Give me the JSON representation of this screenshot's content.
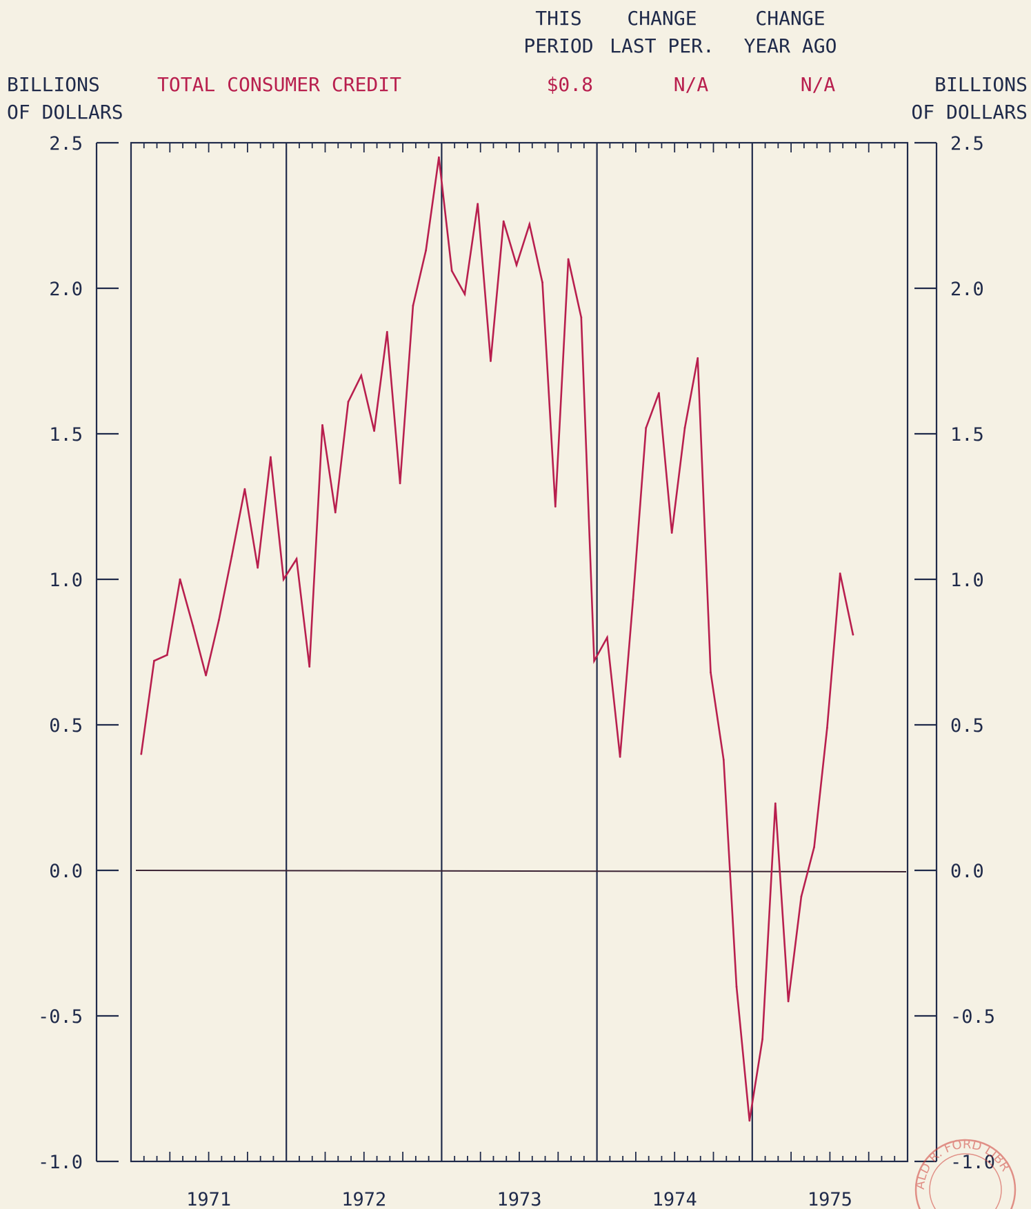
{
  "header": {
    "col1": [
      "THIS",
      "PERIOD"
    ],
    "col2": [
      "CHANGE",
      "LAST PER."
    ],
    "col3": [
      "CHANGE",
      "YEAR AGO"
    ],
    "series_title": "TOTAL CONSUMER CREDIT",
    "this_period": "$0.8",
    "change_last": "N/A",
    "change_year": "N/A",
    "left_unit": [
      "BILLIONS",
      "OF DOLLARS"
    ],
    "right_unit": [
      "BILLIONS",
      "OF DOLLARS"
    ]
  },
  "stamp": "ALD R. FORD LIBR",
  "colors": {
    "axis": "#1f2a4a",
    "series": "#b81f4e",
    "background": "#f5f1e4"
  },
  "chart_data": {
    "type": "line",
    "title": "TOTAL CONSUMER CREDIT",
    "ylabel": "BILLIONS OF DOLLARS",
    "ylim": [
      -1.0,
      2.5
    ],
    "yticks": [
      2.5,
      2.0,
      1.5,
      1.0,
      0.5,
      0.0,
      -0.5,
      -1.0
    ],
    "ytick_labels": [
      "2.5",
      "2.0",
      "1.5",
      "1.0",
      "0.5",
      "0.0",
      "-0.5",
      "-1.0"
    ],
    "xlabels": [
      "1971",
      "1972",
      "1973",
      "1974",
      "1975"
    ],
    "x_start": "1971-01",
    "grid": "vertical year dividers",
    "reference_line": 0.0,
    "series": [
      {
        "values": [
          0.4,
          0.72,
          0.74,
          1.0,
          0.84,
          0.67,
          0.86,
          1.08,
          1.31,
          1.04,
          1.42,
          1.0,
          1.07,
          0.7,
          1.53,
          1.23,
          1.61,
          1.7,
          1.51,
          1.85,
          1.33,
          1.94,
          2.13,
          2.45,
          2.06,
          1.98,
          2.29,
          1.75,
          2.23,
          2.08,
          2.22,
          2.02,
          1.25,
          2.1,
          1.9,
          0.72,
          0.8,
          0.39,
          0.93,
          1.52,
          1.64,
          1.16,
          1.52,
          1.76,
          0.68,
          0.38,
          -0.4,
          -0.86,
          -0.58,
          0.23,
          -0.45,
          -0.09,
          0.08,
          0.49,
          1.02,
          0.81
        ]
      }
    ]
  }
}
